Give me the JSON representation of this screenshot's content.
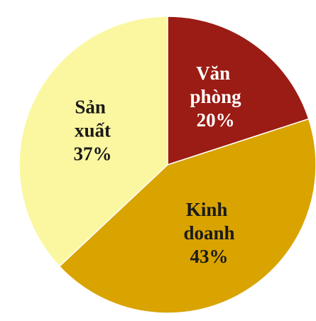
{
  "chart_data": {
    "type": "pie",
    "categories": [
      "Văn phòng",
      "Kinh doanh",
      "Sản xuất"
    ],
    "values": [
      20,
      43,
      37
    ],
    "value_labels": [
      "20%",
      "43%",
      "37%"
    ],
    "colors": [
      "#9b1c14",
      "#d9a300",
      "#fbf7a0"
    ]
  }
}
